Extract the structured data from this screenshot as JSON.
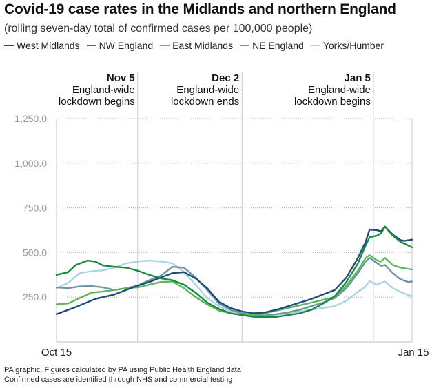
{
  "header": {
    "title": "Covid-19 case rates in the Midlands and northern England",
    "subtitle": "(rolling seven-day total of confirmed cases per 100,000 people)"
  },
  "footer": {
    "line1": "PA graphic. Figures calculated by PA using Public Health England data",
    "line2": "Confirmed cases are identified through NHS and commercial testing"
  },
  "chart_data": {
    "type": "line",
    "title": "Covid-19 case rates in the Midlands and northern England",
    "subtitle": "(rolling seven-day total of confirmed cases per 100,000 people)",
    "xlabel": "",
    "ylabel": "",
    "x_range_days": [
      0,
      92
    ],
    "x_tick_labels": [
      {
        "day": 0,
        "label": "Oct 15"
      },
      {
        "day": 92,
        "label": "Jan 15"
      }
    ],
    "ylim": [
      0,
      1250
    ],
    "y_ticks": [
      {
        "value": 250,
        "label": "250.0"
      },
      {
        "value": 500,
        "label": "500.0"
      },
      {
        "value": 750,
        "label": "750.0"
      },
      {
        "value": 1000,
        "label": "1,000.0"
      },
      {
        "value": 1250,
        "label": "1,250.0"
      }
    ],
    "grid": "horizontal dotted",
    "annotations": [
      {
        "day": 21,
        "date": "Nov 5",
        "line1": "England-wide",
        "line2": "lockdown begins"
      },
      {
        "day": 48,
        "date": "Dec 2",
        "line1": "England-wide",
        "line2": "lockdown ends"
      },
      {
        "day": 82,
        "date": "Jan 5",
        "line1": "England-wide",
        "line2": "lockdown begins"
      }
    ],
    "series": [
      {
        "name": "West Midlands",
        "color": "#1f4e79",
        "points": [
          [
            0,
            155
          ],
          [
            5,
            195
          ],
          [
            10,
            240
          ],
          [
            15,
            265
          ],
          [
            18,
            290
          ],
          [
            21,
            315
          ],
          [
            24,
            335
          ],
          [
            27,
            360
          ],
          [
            30,
            385
          ],
          [
            33,
            390
          ],
          [
            36,
            355
          ],
          [
            39,
            300
          ],
          [
            42,
            225
          ],
          [
            45,
            190
          ],
          [
            48,
            170
          ],
          [
            51,
            160
          ],
          [
            54,
            165
          ],
          [
            57,
            180
          ],
          [
            60,
            200
          ],
          [
            63,
            220
          ],
          [
            66,
            240
          ],
          [
            69,
            265
          ],
          [
            72,
            290
          ],
          [
            75,
            360
          ],
          [
            78,
            470
          ],
          [
            80,
            560
          ],
          [
            81,
            628
          ],
          [
            83,
            625
          ],
          [
            84,
            618
          ],
          [
            85,
            645
          ],
          [
            87,
            600
          ],
          [
            89,
            570
          ],
          [
            90,
            565
          ],
          [
            92,
            572
          ]
        ]
      },
      {
        "name": "NW England",
        "color": "#1a8a3e",
        "points": [
          [
            0,
            375
          ],
          [
            3,
            390
          ],
          [
            5,
            430
          ],
          [
            8,
            455
          ],
          [
            10,
            450
          ],
          [
            12,
            428
          ],
          [
            15,
            420
          ],
          [
            18,
            415
          ],
          [
            21,
            398
          ],
          [
            24,
            375
          ],
          [
            27,
            355
          ],
          [
            30,
            345
          ],
          [
            33,
            320
          ],
          [
            36,
            275
          ],
          [
            39,
            220
          ],
          [
            42,
            185
          ],
          [
            45,
            160
          ],
          [
            48,
            150
          ],
          [
            51,
            140
          ],
          [
            54,
            138
          ],
          [
            57,
            140
          ],
          [
            60,
            150
          ],
          [
            63,
            160
          ],
          [
            66,
            180
          ],
          [
            69,
            215
          ],
          [
            72,
            255
          ],
          [
            75,
            335
          ],
          [
            78,
            440
          ],
          [
            80,
            540
          ],
          [
            81,
            585
          ],
          [
            83,
            595
          ],
          [
            84,
            608
          ],
          [
            85,
            645
          ],
          [
            87,
            595
          ],
          [
            89,
            560
          ],
          [
            92,
            528
          ]
        ]
      },
      {
        "name": "East Midlands",
        "color": "#5cb85c",
        "points": [
          [
            0,
            210
          ],
          [
            3,
            215
          ],
          [
            6,
            245
          ],
          [
            9,
            275
          ],
          [
            12,
            282
          ],
          [
            15,
            290
          ],
          [
            18,
            300
          ],
          [
            21,
            305
          ],
          [
            24,
            320
          ],
          [
            27,
            335
          ],
          [
            30,
            338
          ],
          [
            33,
            300
          ],
          [
            36,
            250
          ],
          [
            39,
            210
          ],
          [
            42,
            175
          ],
          [
            45,
            160
          ],
          [
            48,
            150
          ],
          [
            51,
            150
          ],
          [
            54,
            160
          ],
          [
            57,
            175
          ],
          [
            60,
            190
          ],
          [
            63,
            205
          ],
          [
            66,
            220
          ],
          [
            69,
            235
          ],
          [
            72,
            250
          ],
          [
            75,
            315
          ],
          [
            78,
            400
          ],
          [
            80,
            470
          ],
          [
            81,
            485
          ],
          [
            83,
            455
          ],
          [
            84,
            450
          ],
          [
            85,
            470
          ],
          [
            87,
            430
          ],
          [
            89,
            415
          ],
          [
            92,
            405
          ]
        ]
      },
      {
        "name": "NE England",
        "color": "#6f93a8",
        "points": [
          [
            0,
            305
          ],
          [
            3,
            300
          ],
          [
            6,
            310
          ],
          [
            9,
            312
          ],
          [
            12,
            305
          ],
          [
            15,
            290
          ],
          [
            18,
            300
          ],
          [
            21,
            315
          ],
          [
            24,
            345
          ],
          [
            27,
            370
          ],
          [
            30,
            420
          ],
          [
            33,
            415
          ],
          [
            36,
            360
          ],
          [
            39,
            290
          ],
          [
            42,
            215
          ],
          [
            45,
            180
          ],
          [
            48,
            160
          ],
          [
            51,
            150
          ],
          [
            54,
            148
          ],
          [
            57,
            155
          ],
          [
            60,
            165
          ],
          [
            63,
            180
          ],
          [
            66,
            200
          ],
          [
            69,
            220
          ],
          [
            72,
            245
          ],
          [
            75,
            300
          ],
          [
            78,
            385
          ],
          [
            80,
            450
          ],
          [
            81,
            470
          ],
          [
            83,
            440
          ],
          [
            84,
            425
          ],
          [
            85,
            430
          ],
          [
            87,
            385
          ],
          [
            89,
            350
          ],
          [
            91,
            335
          ],
          [
            92,
            338
          ]
        ]
      },
      {
        "name": "Yorks/Humber",
        "color": "#a9d4e0",
        "points": [
          [
            0,
            300
          ],
          [
            3,
            330
          ],
          [
            6,
            385
          ],
          [
            9,
            395
          ],
          [
            12,
            400
          ],
          [
            15,
            415
          ],
          [
            18,
            440
          ],
          [
            21,
            450
          ],
          [
            24,
            455
          ],
          [
            27,
            450
          ],
          [
            30,
            440
          ],
          [
            33,
            390
          ],
          [
            36,
            320
          ],
          [
            39,
            245
          ],
          [
            42,
            200
          ],
          [
            45,
            170
          ],
          [
            48,
            155
          ],
          [
            51,
            148
          ],
          [
            54,
            148
          ],
          [
            57,
            152
          ],
          [
            60,
            160
          ],
          [
            63,
            170
          ],
          [
            66,
            180
          ],
          [
            69,
            190
          ],
          [
            72,
            200
          ],
          [
            75,
            230
          ],
          [
            78,
            280
          ],
          [
            80,
            310
          ],
          [
            81,
            340
          ],
          [
            83,
            320
          ],
          [
            84,
            330
          ],
          [
            85,
            338
          ],
          [
            87,
            300
          ],
          [
            89,
            280
          ],
          [
            91,
            262
          ],
          [
            92,
            255
          ]
        ]
      }
    ]
  }
}
